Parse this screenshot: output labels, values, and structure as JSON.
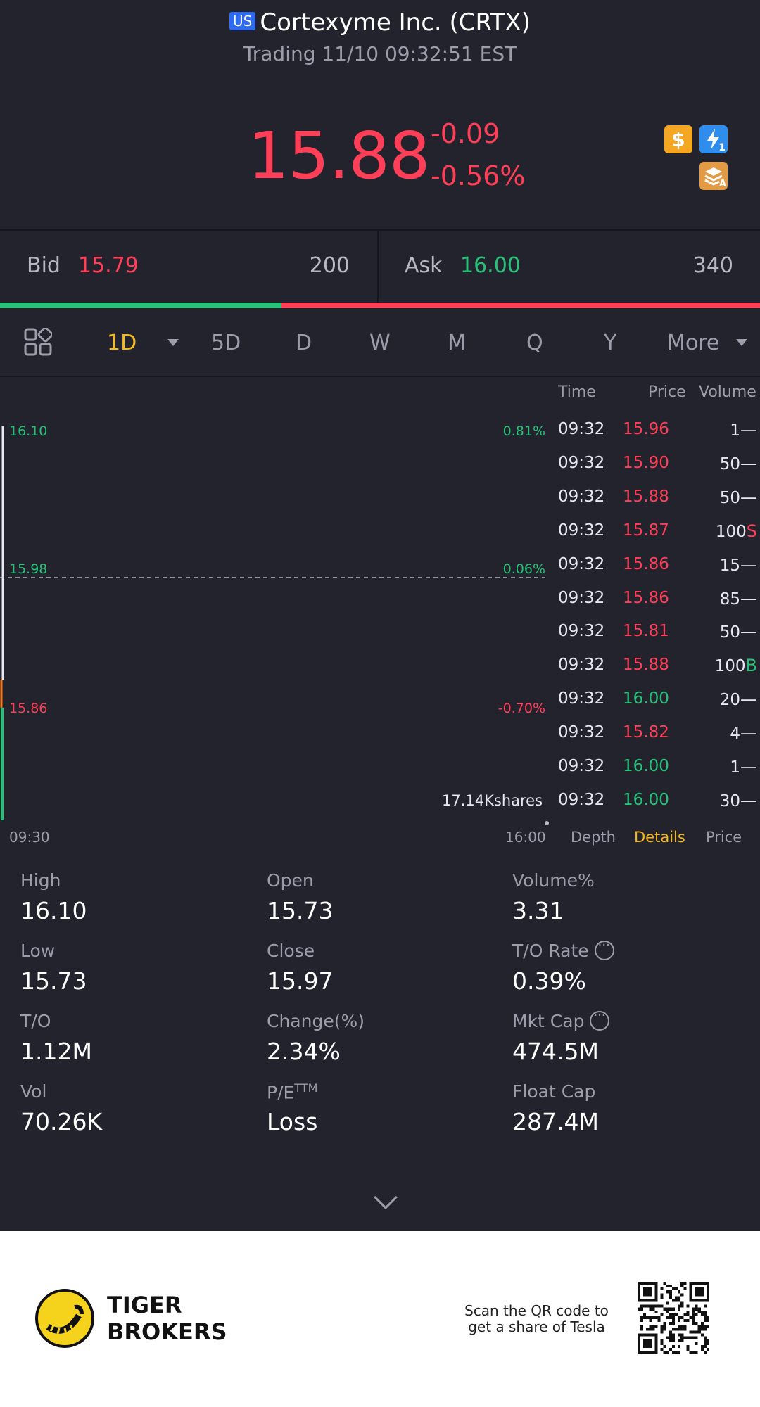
{
  "header": {
    "market_flag": "US",
    "title": "Cortexyme Inc. (CRTX)",
    "status": "Trading 11/10 09:32:51 EST"
  },
  "quote": {
    "price": "15.88",
    "change": "-0.09",
    "change_pct": "-0.56%",
    "badges": [
      "dollar-icon",
      "flash-icon",
      "stack-icon"
    ],
    "flash_sub": "1",
    "stack_sub": "A"
  },
  "bid_ask": {
    "bid_label": "Bid",
    "bid_price": "15.79",
    "bid_size": "200",
    "ask_label": "Ask",
    "ask_price": "16.00",
    "ask_size": "340",
    "bid_fraction": 0.37
  },
  "periods": {
    "items": [
      "1D",
      "5D",
      "D",
      "W",
      "M",
      "Q",
      "Y",
      "More"
    ],
    "active": "1D"
  },
  "chart": {
    "y_labels": [
      {
        "price": "16.10",
        "pct": "0.81%",
        "color": "#27c277"
      },
      {
        "price": "15.98",
        "pct": "0.06%",
        "color": "#27c277"
      },
      {
        "price": "15.86",
        "pct": "-0.70%",
        "color": "#ff3e57"
      }
    ],
    "x_start": "09:30",
    "x_end": "16:00",
    "volume_label": "17.14Kshares"
  },
  "trades": {
    "headers": {
      "time": "Time",
      "price": "Price",
      "volume": "Volume"
    },
    "rows": [
      {
        "time": "09:32",
        "price": "15.96",
        "color": "#ff3e57",
        "vol": "1",
        "side": "—",
        "side_color": "#e7e8ee"
      },
      {
        "time": "09:32",
        "price": "15.90",
        "color": "#ff3e57",
        "vol": "50",
        "side": "—",
        "side_color": "#e7e8ee"
      },
      {
        "time": "09:32",
        "price": "15.88",
        "color": "#ff3e57",
        "vol": "50",
        "side": "—",
        "side_color": "#e7e8ee"
      },
      {
        "time": "09:32",
        "price": "15.87",
        "color": "#ff3e57",
        "vol": "100",
        "side": "S",
        "side_color": "#ff3e57"
      },
      {
        "time": "09:32",
        "price": "15.86",
        "color": "#ff3e57",
        "vol": "15",
        "side": "—",
        "side_color": "#e7e8ee"
      },
      {
        "time": "09:32",
        "price": "15.86",
        "color": "#ff3e57",
        "vol": "85",
        "side": "—",
        "side_color": "#e7e8ee"
      },
      {
        "time": "09:32",
        "price": "15.81",
        "color": "#ff3e57",
        "vol": "50",
        "side": "—",
        "side_color": "#e7e8ee"
      },
      {
        "time": "09:32",
        "price": "15.88",
        "color": "#ff3e57",
        "vol": "100",
        "side": "B",
        "side_color": "#27c277"
      },
      {
        "time": "09:32",
        "price": "16.00",
        "color": "#27c277",
        "vol": "20",
        "side": "—",
        "side_color": "#e7e8ee"
      },
      {
        "time": "09:32",
        "price": "15.82",
        "color": "#ff3e57",
        "vol": "4",
        "side": "—",
        "side_color": "#e7e8ee"
      },
      {
        "time": "09:32",
        "price": "16.00",
        "color": "#27c277",
        "vol": "1",
        "side": "—",
        "side_color": "#e7e8ee"
      },
      {
        "time": "09:32",
        "price": "16.00",
        "color": "#27c277",
        "vol": "30",
        "side": "—",
        "side_color": "#e7e8ee"
      }
    ],
    "tabs": [
      "Depth",
      "Details",
      "Price"
    ],
    "active_tab": "Details"
  },
  "stats": [
    {
      "label": "High",
      "value": "16.10"
    },
    {
      "label": "Open",
      "value": "15.73"
    },
    {
      "label": "Volume%",
      "value": "3.31"
    },
    {
      "label": "Low",
      "value": "15.73"
    },
    {
      "label": "Close",
      "value": "15.97"
    },
    {
      "label": "T/O Rate",
      "value": "0.39%",
      "info": true
    },
    {
      "label": "T/O",
      "value": "1.12M"
    },
    {
      "label": "Change(%)",
      "value": "2.34%"
    },
    {
      "label": "Mkt Cap",
      "value": "474.5M",
      "info": true
    },
    {
      "label": "Vol",
      "value": "70.26K"
    },
    {
      "label": "P/E",
      "sup": "TTM",
      "value": "Loss"
    },
    {
      "label": "Float Cap",
      "value": "287.4M"
    }
  ],
  "footer": {
    "brand_line1": "TIGER",
    "brand_line2": "BROKERS",
    "scan_line1": "Scan the QR code to",
    "scan_line2": "get a share of Tesla"
  },
  "colors": {
    "up": "#27c277",
    "down": "#ff3e57",
    "accent": "#f5b91e",
    "bg": "#22232d"
  }
}
